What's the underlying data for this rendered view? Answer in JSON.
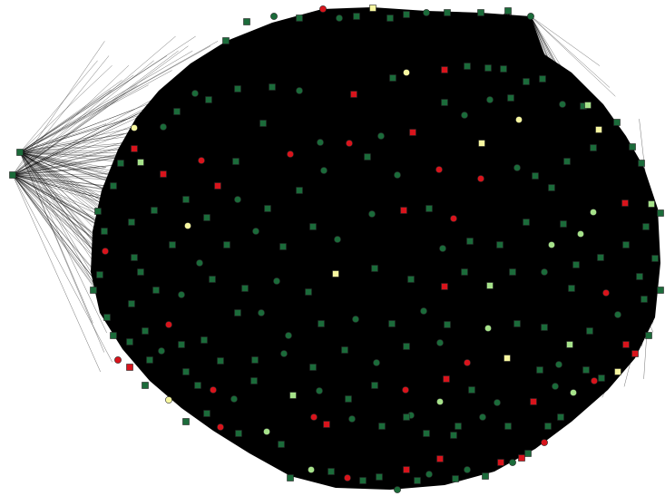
{
  "diagram": {
    "type": "network-graph",
    "background": "#ffffff",
    "edge_color": "#000000",
    "node_border": "#222222",
    "node_colors": {
      "dark_green": "#1b6b3a",
      "light_green": "#a6e28a",
      "pale_yellow": "#f7f7a0",
      "red": "#d8141c"
    },
    "node_shapes": [
      "square",
      "circle"
    ],
    "legend": null
  }
}
